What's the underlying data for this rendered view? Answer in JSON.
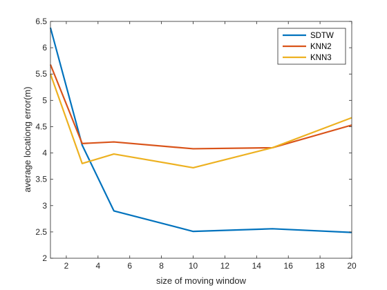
{
  "chart_data": {
    "type": "line",
    "title": "",
    "xlabel": "size of moving window",
    "ylabel": "average locationg error(m)",
    "xlim": [
      1,
      20
    ],
    "ylim": [
      2,
      6.5
    ],
    "xticks": [
      2,
      4,
      6,
      8,
      10,
      12,
      14,
      16,
      18,
      20
    ],
    "yticks": [
      2,
      2.5,
      3,
      3.5,
      4,
      4.5,
      5,
      5.5,
      6,
      6.5
    ],
    "grid": false,
    "legend_position": "top-right",
    "x": [
      1,
      3,
      5,
      10,
      15,
      20
    ],
    "series": [
      {
        "name": "SDTW",
        "color": "#0072BD",
        "values": [
          6.38,
          4.15,
          2.9,
          2.51,
          2.56,
          2.49
        ]
      },
      {
        "name": "KNN2",
        "color": "#D95319",
        "values": [
          5.68,
          4.18,
          4.21,
          4.08,
          4.1,
          4.53
        ]
      },
      {
        "name": "KNN3",
        "color": "#EDB120",
        "values": [
          5.5,
          3.8,
          3.98,
          3.72,
          4.1,
          4.67
        ]
      }
    ]
  }
}
